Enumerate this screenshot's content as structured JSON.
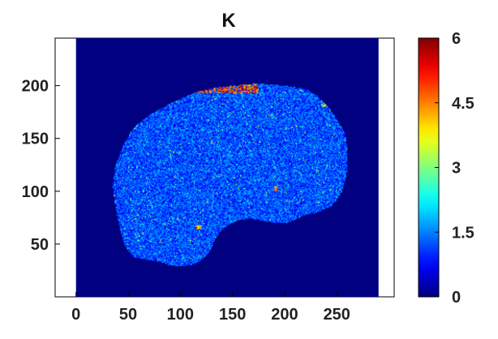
{
  "chart_data": [
    {
      "type": "heatmap",
      "title": "K",
      "xlabel": "",
      "ylabel": "",
      "xlim": [
        -20,
        305
      ],
      "ylim": [
        0,
        245
      ],
      "x_ticks": [
        0,
        50,
        100,
        150,
        200,
        250
      ],
      "y_ticks": [
        50,
        100,
        150,
        200
      ],
      "grid": false,
      "image_extent": {
        "x": [
          0,
          290
        ],
        "y": [
          0,
          245
        ]
      },
      "background_value": 0,
      "colorscale": "jet",
      "typical_value_inside_region": 1.2,
      "colorbar": {
        "range": [
          0,
          6
        ],
        "ticks": [
          "0",
          "1.5",
          "3",
          "4.5",
          "6"
        ],
        "tick_values": [
          0,
          1.5,
          3,
          4.5,
          6
        ],
        "placement": "right"
      },
      "region_outline": [
        [
          55,
          37
        ],
        [
          60,
          37
        ],
        [
          70,
          35
        ],
        [
          80,
          33
        ],
        [
          90,
          30
        ],
        [
          100,
          29
        ],
        [
          110,
          30
        ],
        [
          118,
          33
        ],
        [
          124,
          38
        ],
        [
          128,
          42
        ],
        [
          132,
          52
        ],
        [
          138,
          62
        ],
        [
          146,
          68
        ],
        [
          156,
          73
        ],
        [
          168,
          74
        ],
        [
          178,
          72
        ],
        [
          190,
          70
        ],
        [
          202,
          70
        ],
        [
          210,
          73
        ],
        [
          218,
          77
        ],
        [
          228,
          79
        ],
        [
          236,
          82
        ],
        [
          245,
          86
        ],
        [
          250,
          92
        ],
        [
          255,
          100
        ],
        [
          258,
          110
        ],
        [
          260,
          120
        ],
        [
          260,
          140
        ],
        [
          258,
          155
        ],
        [
          250,
          168
        ],
        [
          242,
          180
        ],
        [
          232,
          190
        ],
        [
          220,
          197
        ],
        [
          200,
          200
        ],
        [
          175,
          202
        ],
        [
          140,
          199
        ],
        [
          115,
          194
        ],
        [
          92,
          184
        ],
        [
          70,
          172
        ],
        [
          55,
          160
        ],
        [
          45,
          143
        ],
        [
          38,
          125
        ],
        [
          35,
          105
        ],
        [
          38,
          85
        ],
        [
          42,
          65
        ],
        [
          46,
          50
        ]
      ],
      "high_value_regions": [
        {
          "x": [
            115,
            175
          ],
          "y": [
            193,
            201
          ],
          "max_value": 6
        },
        {
          "x": [
            235,
            245
          ],
          "y": [
            180,
            188
          ],
          "max_value": 4.5
        },
        {
          "x": [
            190,
            194
          ],
          "y": [
            100,
            105
          ],
          "max_value": 5.5
        },
        {
          "x": [
            115,
            120
          ],
          "y": [
            64,
            68
          ],
          "max_value": 5
        }
      ]
    }
  ]
}
